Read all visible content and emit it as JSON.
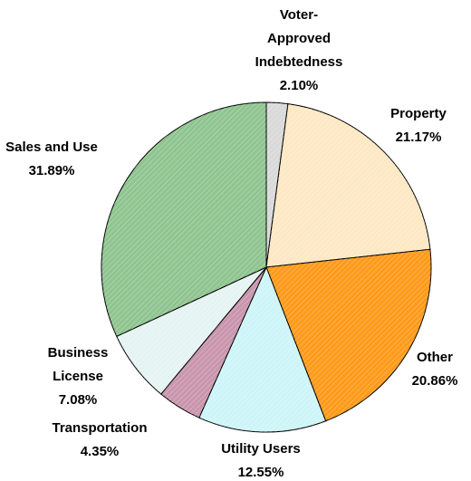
{
  "chart_data": {
    "type": "pie",
    "categories": [
      "Voter-Approved Indebtedness",
      "Property",
      "Other",
      "Utility Users",
      "Transportation",
      "Business License",
      "Sales and Use"
    ],
    "values": [
      2.1,
      21.17,
      20.86,
      12.55,
      4.35,
      7.08,
      31.89
    ],
    "value_labels": [
      "2.10%",
      "21.17%",
      "20.86%",
      "12.55%",
      "4.35%",
      "7.08%",
      "31.89%"
    ],
    "colors": [
      "#d9d9d9",
      "#fde8c4",
      "#ff9a1a",
      "#cdf5f8",
      "#c995ad",
      "#e6f3f3",
      "#8fc48f"
    ]
  }
}
